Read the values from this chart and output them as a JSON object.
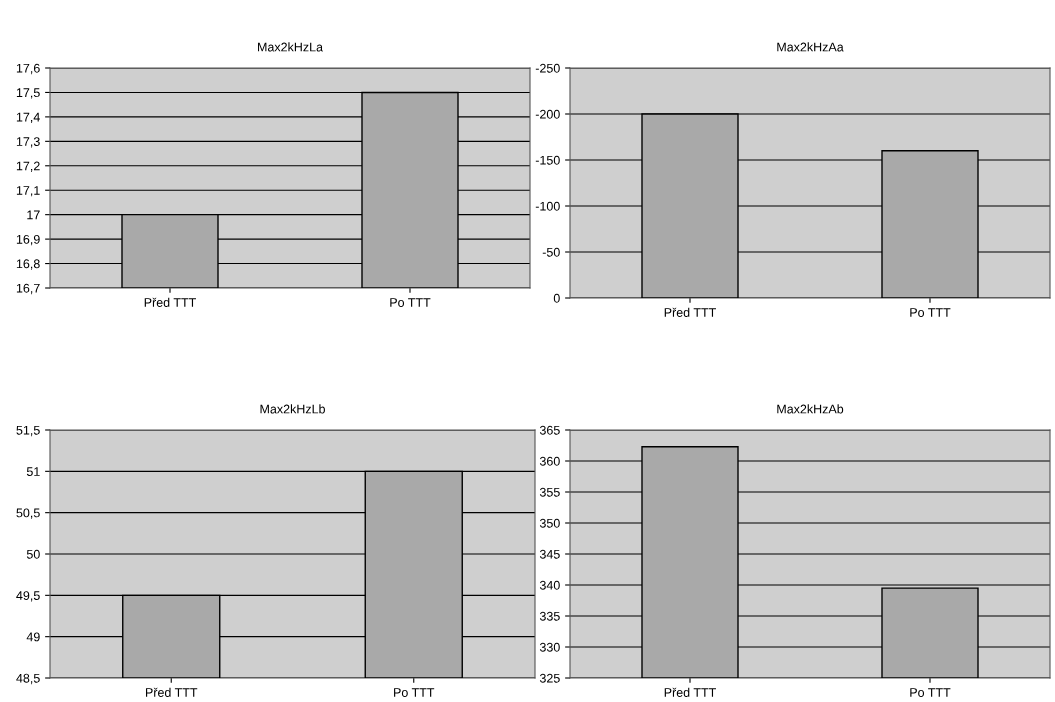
{
  "chart_data": [
    {
      "type": "bar",
      "title": "Max2kHzLa",
      "categories": [
        "Před TTT",
        "Po TTT"
      ],
      "values": [
        17.0,
        17.5
      ],
      "color": "#a9a9a9",
      "ylim": [
        16.7,
        17.6
      ],
      "yticks": [
        {
          "value": 16.7,
          "label": "16,7"
        },
        {
          "value": 16.8,
          "label": "16,8"
        },
        {
          "value": 16.9,
          "label": "16,9"
        },
        {
          "value": 17.0,
          "label": "17"
        },
        {
          "value": 17.1,
          "label": "17,1"
        },
        {
          "value": 17.2,
          "label": "17,2"
        },
        {
          "value": 17.3,
          "label": "17,3"
        },
        {
          "value": 17.4,
          "label": "17,4"
        },
        {
          "value": 17.5,
          "label": "17,5"
        },
        {
          "value": 17.6,
          "label": "17,6"
        }
      ],
      "grid": "y",
      "legend": false
    },
    {
      "type": "bar",
      "title": "Max2kHzAa",
      "categories": [
        "Před TTT",
        "Po TTT"
      ],
      "values": [
        -200,
        -160
      ],
      "color": "#a9a9a9",
      "ylim": [
        0,
        -250
      ],
      "yticks": [
        0,
        -50,
        -100,
        -150,
        -200,
        -250
      ],
      "grid": "y",
      "legend": false
    },
    {
      "type": "bar",
      "title": "Max2kHzLb",
      "categories": [
        "Před TTT",
        "Po TTT"
      ],
      "values": [
        49.5,
        51.0
      ],
      "color": "#a9a9a9",
      "ylim": [
        48.5,
        51.5
      ],
      "yticks": [
        {
          "value": 48.5,
          "label": "48,5"
        },
        49,
        {
          "value": 49.5,
          "label": "49,5"
        },
        50,
        {
          "value": 50.5,
          "label": "50,5"
        },
        51,
        {
          "value": 51.5,
          "label": "51,5"
        }
      ],
      "grid": "y",
      "legend": false
    },
    {
      "type": "bar",
      "title": "Max2kHzAb",
      "categories": [
        "Před TTT",
        "Po TTT"
      ],
      "values": [
        362.3,
        339.5
      ],
      "color": "#a9a9a9",
      "ylim": [
        325,
        365
      ],
      "yticks": [
        325,
        330,
        335,
        340,
        345,
        350,
        355,
        360,
        365
      ],
      "grid": "y",
      "legend": false
    }
  ]
}
